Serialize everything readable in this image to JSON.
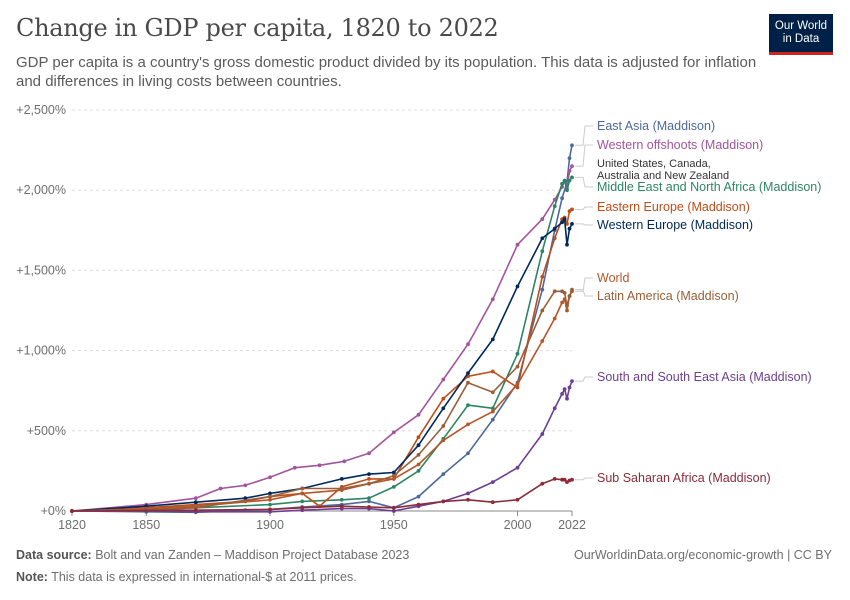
{
  "header": {
    "title": "Change in GDP per capita, 1820 to 2022",
    "subtitle": "GDP per capita is a country's gross domestic product divided by its population. This data is adjusted for inflation and differences in living costs between countries.",
    "logo_line1": "Our World",
    "logo_line2": "in Data"
  },
  "footer": {
    "source_label": "Data source:",
    "source_text": "Bolt and van Zanden – Maddison Project Database 2023",
    "note_label": "Note:",
    "note_text": "This data is expressed in international-$ at 2011 prices.",
    "right_text": "OurWorldinData.org/economic-growth | CC BY"
  },
  "chart_data": {
    "type": "line",
    "title": "Change in GDP per capita, 1820 to 2022",
    "xlabel": "",
    "ylabel": "",
    "xlim": [
      1820,
      2022
    ],
    "ylim": [
      0,
      2500
    ],
    "x_ticks": [
      1820,
      1850,
      1900,
      1950,
      2000,
      2022
    ],
    "x_tick_labels": [
      "1820",
      "1850",
      "1900",
      "1950",
      "2000",
      "2022"
    ],
    "y_ticks": [
      0,
      500,
      1000,
      1500,
      2000,
      2500
    ],
    "y_tick_labels": [
      "+0%",
      "+500%",
      "+1,000%",
      "+1,500%",
      "+2,000%",
      "+2,500%"
    ],
    "grid": "horizontal dashed",
    "extra_labels": [
      "United States, Canada,",
      "Australia and New Zealand"
    ],
    "series": [
      {
        "name": "East Asia (Maddison)",
        "color": "#4c6a9c",
        "points": [
          [
            1820,
            0
          ],
          [
            1850,
            -5
          ],
          [
            1870,
            -8
          ],
          [
            1890,
            5
          ],
          [
            1900,
            10
          ],
          [
            1913,
            25
          ],
          [
            1929,
            40
          ],
          [
            1940,
            60
          ],
          [
            1950,
            20
          ],
          [
            1960,
            90
          ],
          [
            1970,
            230
          ],
          [
            1980,
            360
          ],
          [
            1990,
            570
          ],
          [
            2000,
            800
          ],
          [
            2010,
            1380
          ],
          [
            2015,
            1750
          ],
          [
            2018,
            1950
          ],
          [
            2020,
            2050
          ],
          [
            2021,
            2200
          ],
          [
            2022,
            2280
          ]
        ]
      },
      {
        "name": "Western offshoots (Maddison)",
        "color": "#a2559c",
        "points": [
          [
            1820,
            0
          ],
          [
            1850,
            40
          ],
          [
            1870,
            80
          ],
          [
            1880,
            140
          ],
          [
            1890,
            160
          ],
          [
            1900,
            210
          ],
          [
            1910,
            270
          ],
          [
            1920,
            285
          ],
          [
            1930,
            310
          ],
          [
            1940,
            360
          ],
          [
            1950,
            490
          ],
          [
            1960,
            600
          ],
          [
            1970,
            820
          ],
          [
            1980,
            1040
          ],
          [
            1990,
            1320
          ],
          [
            2000,
            1660
          ],
          [
            2010,
            1820
          ],
          [
            2015,
            1940
          ],
          [
            2018,
            2020
          ],
          [
            2019,
            2060
          ],
          [
            2020,
            2010
          ],
          [
            2021,
            2120
          ],
          [
            2022,
            2150
          ]
        ]
      },
      {
        "name": "Middle East and North Africa (Maddison)",
        "color": "#2e8563",
        "points": [
          [
            1820,
            0
          ],
          [
            1850,
            10
          ],
          [
            1870,
            20
          ],
          [
            1900,
            40
          ],
          [
            1913,
            60
          ],
          [
            1929,
            70
          ],
          [
            1940,
            80
          ],
          [
            1950,
            150
          ],
          [
            1960,
            250
          ],
          [
            1970,
            450
          ],
          [
            1980,
            660
          ],
          [
            1990,
            640
          ],
          [
            2000,
            980
          ],
          [
            2010,
            1620
          ],
          [
            2015,
            1900
          ],
          [
            2018,
            2040
          ],
          [
            2019,
            2060
          ],
          [
            2020,
            2000
          ],
          [
            2021,
            2060
          ],
          [
            2022,
            2080
          ]
        ]
      },
      {
        "name": "Eastern Europe (Maddison)",
        "color": "#be4d19",
        "points": [
          [
            1820,
            0
          ],
          [
            1850,
            20
          ],
          [
            1870,
            40
          ],
          [
            1890,
            60
          ],
          [
            1900,
            90
          ],
          [
            1913,
            110
          ],
          [
            1920,
            30
          ],
          [
            1929,
            150
          ],
          [
            1940,
            200
          ],
          [
            1950,
            200
          ],
          [
            1960,
            460
          ],
          [
            1970,
            700
          ],
          [
            1980,
            840
          ],
          [
            1990,
            870
          ],
          [
            2000,
            770
          ],
          [
            2010,
            1460
          ],
          [
            2015,
            1700
          ],
          [
            2018,
            1820
          ],
          [
            2019,
            1830
          ],
          [
            2020,
            1790
          ],
          [
            2021,
            1870
          ],
          [
            2022,
            1880
          ]
        ]
      },
      {
        "name": "Western Europe (Maddison)",
        "color": "#00295b",
        "points": [
          [
            1820,
            0
          ],
          [
            1850,
            30
          ],
          [
            1870,
            55
          ],
          [
            1890,
            80
          ],
          [
            1900,
            110
          ],
          [
            1913,
            140
          ],
          [
            1929,
            200
          ],
          [
            1940,
            230
          ],
          [
            1950,
            240
          ],
          [
            1960,
            410
          ],
          [
            1970,
            640
          ],
          [
            1980,
            860
          ],
          [
            1990,
            1070
          ],
          [
            2000,
            1400
          ],
          [
            2010,
            1700
          ],
          [
            2015,
            1760
          ],
          [
            2018,
            1800
          ],
          [
            2019,
            1820
          ],
          [
            2020,
            1660
          ],
          [
            2021,
            1760
          ],
          [
            2022,
            1790
          ]
        ]
      },
      {
        "name": "World",
        "color": "#b5572b",
        "points": [
          [
            1820,
            0
          ],
          [
            1850,
            15
          ],
          [
            1870,
            30
          ],
          [
            1900,
            70
          ],
          [
            1913,
            110
          ],
          [
            1929,
            130
          ],
          [
            1940,
            170
          ],
          [
            1950,
            200
          ],
          [
            1960,
            290
          ],
          [
            1970,
            440
          ],
          [
            1980,
            540
          ],
          [
            1990,
            620
          ],
          [
            2000,
            790
          ],
          [
            2010,
            1060
          ],
          [
            2015,
            1200
          ],
          [
            2018,
            1300
          ],
          [
            2019,
            1320
          ],
          [
            2020,
            1250
          ],
          [
            2021,
            1340
          ],
          [
            2022,
            1370
          ]
        ]
      },
      {
        "name": "Latin America (Maddison)",
        "color": "#9a5f38",
        "points": [
          [
            1820,
            0
          ],
          [
            1850,
            5
          ],
          [
            1870,
            20
          ],
          [
            1900,
            90
          ],
          [
            1913,
            140
          ],
          [
            1929,
            140
          ],
          [
            1940,
            170
          ],
          [
            1950,
            220
          ],
          [
            1960,
            350
          ],
          [
            1970,
            530
          ],
          [
            1980,
            800
          ],
          [
            1990,
            740
          ],
          [
            2000,
            900
          ],
          [
            2010,
            1250
          ],
          [
            2015,
            1370
          ],
          [
            2018,
            1370
          ],
          [
            2019,
            1360
          ],
          [
            2020,
            1280
          ],
          [
            2021,
            1340
          ],
          [
            2022,
            1380
          ]
        ]
      },
      {
        "name": "South and South East Asia (Maddison)",
        "color": "#6d3e91",
        "points": [
          [
            1820,
            0
          ],
          [
            1850,
            0
          ],
          [
            1870,
            -5
          ],
          [
            1900,
            -5
          ],
          [
            1913,
            5
          ],
          [
            1929,
            15
          ],
          [
            1940,
            15
          ],
          [
            1950,
            0
          ],
          [
            1960,
            30
          ],
          [
            1970,
            60
          ],
          [
            1980,
            110
          ],
          [
            1990,
            180
          ],
          [
            2000,
            270
          ],
          [
            2010,
            480
          ],
          [
            2015,
            640
          ],
          [
            2018,
            730
          ],
          [
            2019,
            760
          ],
          [
            2020,
            700
          ],
          [
            2021,
            770
          ],
          [
            2022,
            810
          ]
        ]
      },
      {
        "name": "Sub Saharan Africa (Maddison)",
        "color": "#8c2b39",
        "points": [
          [
            1820,
            0
          ],
          [
            1870,
            5
          ],
          [
            1900,
            10
          ],
          [
            1913,
            20
          ],
          [
            1929,
            30
          ],
          [
            1940,
            25
          ],
          [
            1950,
            20
          ],
          [
            1960,
            40
          ],
          [
            1970,
            60
          ],
          [
            1980,
            70
          ],
          [
            1990,
            55
          ],
          [
            2000,
            70
          ],
          [
            2010,
            170
          ],
          [
            2015,
            200
          ],
          [
            2018,
            195
          ],
          [
            2019,
            195
          ],
          [
            2020,
            180
          ],
          [
            2021,
            190
          ],
          [
            2022,
            195
          ]
        ]
      }
    ]
  }
}
